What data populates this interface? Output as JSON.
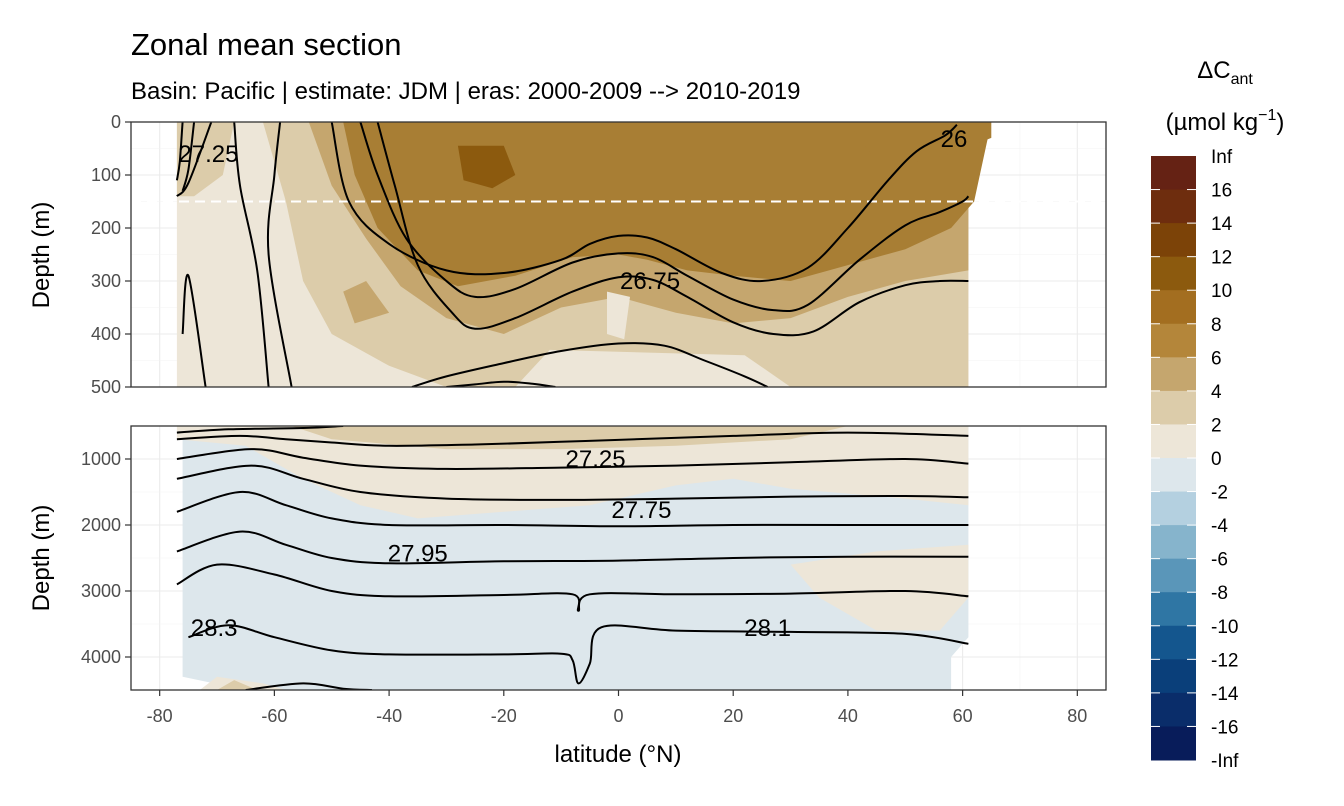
{
  "chart_data": {
    "type": "heatmap",
    "title": "Zonal mean section",
    "subtitle": "Basin: Pacific | estimate: JDM  | eras: 2000-2009 --> 2010-2019",
    "xlabel": "latitude (°N)",
    "x_ticks": [
      "-80",
      "-60",
      "-40",
      "-20",
      "0",
      "20",
      "40",
      "60",
      "80"
    ],
    "xlim": [
      -85,
      85
    ],
    "panels": [
      {
        "ylabel": "Depth (m)",
        "ylim": [
          0,
          500
        ],
        "y_ticks": [
          "0",
          "100",
          "200",
          "300",
          "400",
          "500"
        ],
        "reference_line": {
          "depth": 150,
          "style": "dashed",
          "color": "#ffffff"
        },
        "contour_labels": [
          {
            "text": "26",
            "lat": 58.5,
            "depth": 32
          },
          {
            "text": "27.25",
            "lat": -71.5,
            "depth": 60
          },
          {
            "text": "26.75",
            "lat": 5.5,
            "depth": 300
          }
        ],
        "isopycnals": [
          [
            [
              -76,
              0
            ],
            [
              -76.5,
              75
            ],
            [
              -77,
              110
            ]
          ],
          [
            [
              -74,
              0
            ],
            [
              -75,
              90
            ],
            [
              -76,
              130
            ]
          ],
          [
            [
              -71,
              0
            ],
            [
              -75,
              115
            ],
            [
              -77,
              140
            ]
          ],
          [
            [
              -67,
              0
            ],
            [
              -66,
              120
            ],
            [
              -63,
              280
            ],
            [
              -61,
              500
            ]
          ],
          [
            [
              -59,
              0
            ],
            [
              -60,
              100
            ],
            [
              -61,
              250
            ],
            [
              -57,
              500
            ]
          ],
          [
            [
              -50,
              0
            ],
            [
              -47,
              150
            ],
            [
              -40,
              230
            ],
            [
              -30,
              280
            ],
            [
              -20,
              285
            ],
            [
              -10,
              260
            ],
            [
              -5,
              230
            ],
            [
              0,
              215
            ],
            [
              5,
              218
            ],
            [
              10,
              240
            ],
            [
              18,
              285
            ],
            [
              25,
              300
            ],
            [
              33,
              275
            ],
            [
              40,
              200
            ],
            [
              47,
              110
            ],
            [
              52,
              55
            ],
            [
              57,
              25
            ],
            [
              59,
              5
            ]
          ],
          [
            [
              -45,
              0
            ],
            [
              -42,
              100
            ],
            [
              -37,
              220
            ],
            [
              -30,
              300
            ],
            [
              -25,
              330
            ],
            [
              -18,
              315
            ],
            [
              -8,
              265
            ],
            [
              0,
              248
            ],
            [
              6,
              255
            ],
            [
              12,
              290
            ],
            [
              20,
              335
            ],
            [
              27,
              355
            ],
            [
              33,
              345
            ],
            [
              42,
              260
            ],
            [
              50,
              195
            ],
            [
              56,
              170
            ],
            [
              60,
              150
            ],
            [
              61,
              140
            ]
          ],
          [
            [
              -42,
              0
            ],
            [
              -39,
              120
            ],
            [
              -35,
              270
            ],
            [
              -29,
              360
            ],
            [
              -25,
              390
            ],
            [
              -18,
              370
            ],
            [
              -8,
              320
            ],
            [
              0,
              293
            ],
            [
              6,
              298
            ],
            [
              12,
              330
            ],
            [
              20,
              378
            ],
            [
              27,
              400
            ],
            [
              34,
              395
            ],
            [
              42,
              340
            ],
            [
              50,
              308
            ],
            [
              56,
              300
            ],
            [
              61,
              300
            ]
          ],
          [
            [
              -36,
              500
            ],
            [
              -30,
              480
            ],
            [
              -20,
              455
            ],
            [
              -10,
              432
            ],
            [
              0,
              418
            ],
            [
              8,
              422
            ],
            [
              15,
              450
            ],
            [
              22,
              480
            ],
            [
              26,
              500
            ]
          ],
          [
            [
              -72,
              500
            ],
            [
              -75,
              290
            ],
            [
              -76,
              400
            ]
          ],
          [
            [
              -30,
              500
            ],
            [
              -25,
              495
            ],
            [
              -20,
              490
            ],
            [
              -15,
              494
            ],
            [
              -11,
              500
            ]
          ]
        ]
      },
      {
        "ylabel": "Depth (m)",
        "ylim": [
          500,
          4500
        ],
        "y_ticks": [
          "1000",
          "2000",
          "3000",
          "4000"
        ],
        "contour_labels": [
          {
            "text": "27.25",
            "lat": -4,
            "depth": 1000
          },
          {
            "text": "27.75",
            "lat": 4,
            "depth": 1770
          },
          {
            "text": "27.95",
            "lat": -35,
            "depth": 2430
          },
          {
            "text": "28.3",
            "lat": -70.5,
            "depth": 3560
          },
          {
            "text": "28.1",
            "lat": 26,
            "depth": 3560
          }
        ],
        "isopycnals": [
          [
            [
              -77,
              600
            ],
            [
              -68,
              550
            ],
            [
              -55,
              530
            ],
            [
              -48,
              500
            ]
          ],
          [
            [
              -77,
              700
            ],
            [
              -66,
              650
            ],
            [
              -58,
              700
            ],
            [
              -50,
              750
            ],
            [
              -40,
              800
            ],
            [
              -25,
              780
            ],
            [
              -10,
              740
            ],
            [
              0,
              710
            ],
            [
              20,
              650
            ],
            [
              40,
              600
            ],
            [
              61,
              650
            ]
          ],
          [
            [
              -77,
              1000
            ],
            [
              -64,
              850
            ],
            [
              -55,
              980
            ],
            [
              -45,
              1100
            ],
            [
              -30,
              1150
            ],
            [
              -10,
              1130
            ],
            [
              10,
              1100
            ],
            [
              30,
              1050
            ],
            [
              50,
              1000
            ],
            [
              61,
              1070
            ]
          ],
          [
            [
              -77,
              1300
            ],
            [
              -64,
              1100
            ],
            [
              -55,
              1300
            ],
            [
              -45,
              1500
            ],
            [
              -30,
              1600
            ],
            [
              -10,
              1620
            ],
            [
              10,
              1600
            ],
            [
              30,
              1570
            ],
            [
              50,
              1560
            ],
            [
              61,
              1580
            ]
          ],
          [
            [
              -77,
              1800
            ],
            [
              -66,
              1500
            ],
            [
              -58,
              1700
            ],
            [
              -50,
              1900
            ],
            [
              -40,
              2000
            ],
            [
              -20,
              2000
            ],
            [
              0,
              2020
            ],
            [
              20,
              2000
            ],
            [
              40,
              2000
            ],
            [
              61,
              2000
            ]
          ],
          [
            [
              -77,
              2400
            ],
            [
              -66,
              2100
            ],
            [
              -58,
              2300
            ],
            [
              -50,
              2500
            ],
            [
              -40,
              2580
            ],
            [
              -20,
              2550
            ],
            [
              0,
              2540
            ],
            [
              20,
              2500
            ],
            [
              40,
              2480
            ],
            [
              61,
              2480
            ]
          ],
          [
            [
              -77,
              2900
            ],
            [
              -70,
              2600
            ],
            [
              -60,
              2750
            ],
            [
              -50,
              3000
            ],
            [
              -40,
              3080
            ],
            [
              -20,
              3060
            ],
            [
              -8,
              3050
            ],
            [
              -7,
              3300
            ],
            [
              -5,
              3050
            ],
            [
              10,
              3050
            ],
            [
              30,
              3040
            ],
            [
              50,
              3000
            ],
            [
              61,
              3080
            ]
          ],
          [
            [
              -75,
              3700
            ],
            [
              -68,
              3520
            ],
            [
              -60,
              3700
            ],
            [
              -50,
              3900
            ],
            [
              -40,
              3960
            ],
            [
              -20,
              3960
            ],
            [
              -10,
              3950
            ],
            [
              -8,
              4050
            ],
            [
              -7,
              4400
            ],
            [
              -5,
              4100
            ],
            [
              -3,
              3550
            ],
            [
              10,
              3600
            ],
            [
              30,
              3620
            ],
            [
              50,
              3650
            ],
            [
              61,
              3800
            ]
          ],
          [
            [
              -65,
              4500
            ],
            [
              -55,
              4400
            ],
            [
              -48,
              4480
            ],
            [
              -43,
              4500
            ]
          ]
        ]
      }
    ],
    "legend": {
      "title_line1": "ΔC",
      "title_sub": "ant",
      "title_line2_pre": "(µmol kg",
      "title_sup": "−1",
      "title_line2_post": ")",
      "labels": [
        "Inf",
        "16",
        "14",
        "12",
        "10",
        "8",
        "6",
        "4",
        "2",
        "0",
        "-2",
        "-4",
        "-6",
        "-8",
        "-10",
        "-12",
        "-14",
        "-16",
        "-Inf"
      ],
      "colors": [
        "#652214",
        "#6e2d0e",
        "#7c4308",
        "#8c5a0e",
        "#a36e20",
        "#b4863a",
        "#c5a66e",
        "#dcccaa",
        "#ede6d8",
        "#dde7ec",
        "#b4d0e0",
        "#86b4cc",
        "#5a96b9",
        "#2f76a4",
        "#14568e",
        "#0a3f7a",
        "#0a2d6a",
        "#081c5a"
      ]
    },
    "colors": {
      "up_surface": "#a87e34",
      "up_dark": "#8c5a0e",
      "up_mid": "#c5a66e",
      "up_light": "#dcccaa",
      "up_pale": "#ede6d8",
      "deep_blue": "#dde7ec",
      "deep_beige": "#ede6d8",
      "deep_tan": "#dcccaa"
    }
  }
}
